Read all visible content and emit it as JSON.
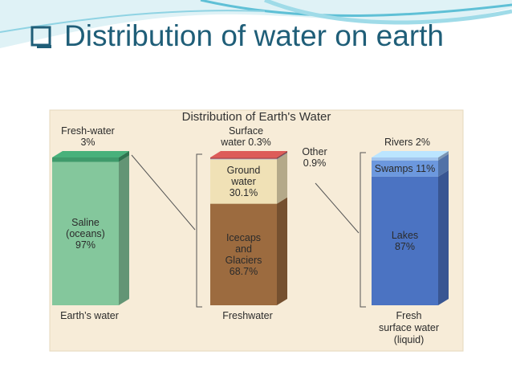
{
  "slide_title": "Distribution of water on earth",
  "chart_data": {
    "type": "stacked-column",
    "title": "Distribution of Earth's Water",
    "ylim": [
      0,
      100
    ],
    "columns": [
      {
        "label_lines": [
          "Earth’s water"
        ],
        "segments": [
          {
            "name": "Saline (oceans)",
            "value": 97,
            "value_label": "97%",
            "color": "#84c79c"
          },
          {
            "name": "Fresh-water",
            "value": 3,
            "value_label": "3%",
            "color": "#3f9a6b"
          }
        ]
      },
      {
        "label_lines": [
          "Freshwater"
        ],
        "segments": [
          {
            "name": "Icecaps and Glaciers",
            "value": 68.7,
            "value_label": "68.7%",
            "color": "#9c6b3f"
          },
          {
            "name": "Ground water",
            "value": 30.1,
            "value_label": "30.1%",
            "color": "#f0e1b6"
          },
          {
            "name": "Surface water",
            "value": 0.3,
            "value_label": "0.3%",
            "color": "#5b86cf"
          },
          {
            "name": "Other",
            "value": 0.9,
            "value_label": "0.9%",
            "color": "#c0504d"
          }
        ]
      },
      {
        "label_lines": [
          "Fresh",
          "surface water",
          "(liquid)"
        ],
        "segments": [
          {
            "name": "Lakes",
            "value": 87,
            "value_label": "87%",
            "color": "#4b73c2"
          },
          {
            "name": "Swamps",
            "value": 11,
            "value_label": "11%",
            "color": "#6c98de"
          },
          {
            "name": "Rivers",
            "value": 2,
            "value_label": "2%",
            "color": "#a3c7ef"
          }
        ]
      }
    ]
  }
}
